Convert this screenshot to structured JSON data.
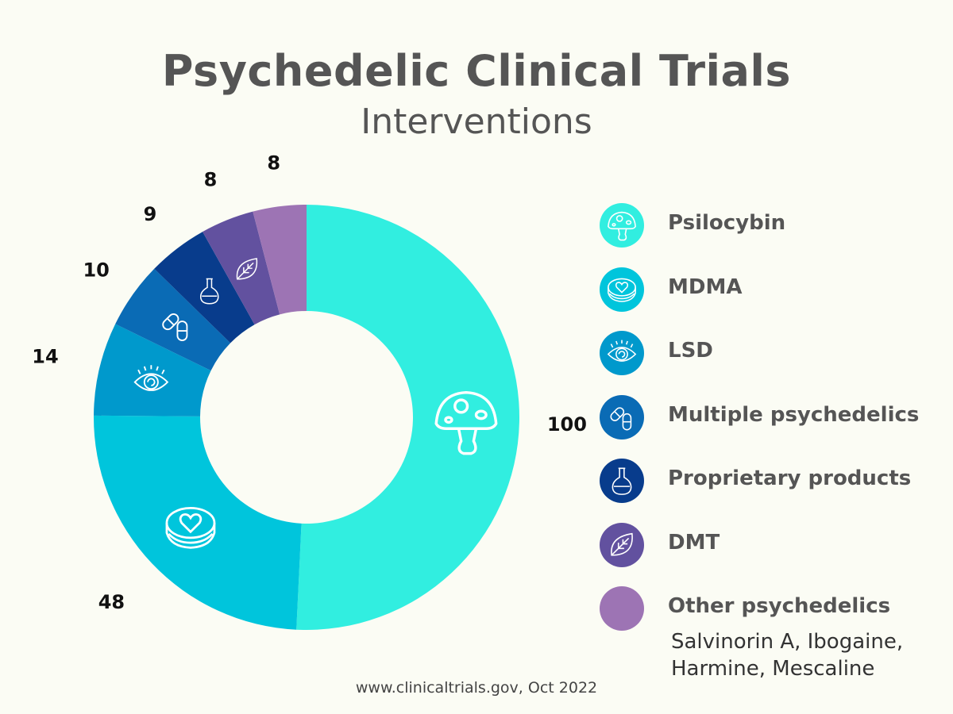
{
  "title": "Psychedelic Clinical Trials",
  "subtitle": "Interventions",
  "source": "www.clinicaltrials.gov, Oct 2022",
  "other_note": "Salvinorin A, Ibogaine, Harmine, Mescaline",
  "chart_data": {
    "type": "pie",
    "style": "donut",
    "title": "Psychedelic Clinical Trials",
    "subtitle": "Interventions",
    "legend_position": "right",
    "categories": [
      "Psilocybin",
      "MDMA",
      "LSD",
      "Multiple psychedelics",
      "Proprietary products",
      "DMT",
      "Other psychedelics"
    ],
    "values": [
      100,
      48,
      14,
      10,
      9,
      8,
      8
    ],
    "colors": [
      "#31eee0",
      "#00c5dc",
      "#0099cc",
      "#0a6bb5",
      "#083c8c",
      "#62519f",
      "#9d74b4"
    ],
    "icons": [
      "mushroom-icon",
      "heart-tablet-icon",
      "eye-icon",
      "capsules-icon",
      "flask-icon",
      "leaf-icon",
      "none"
    ]
  }
}
